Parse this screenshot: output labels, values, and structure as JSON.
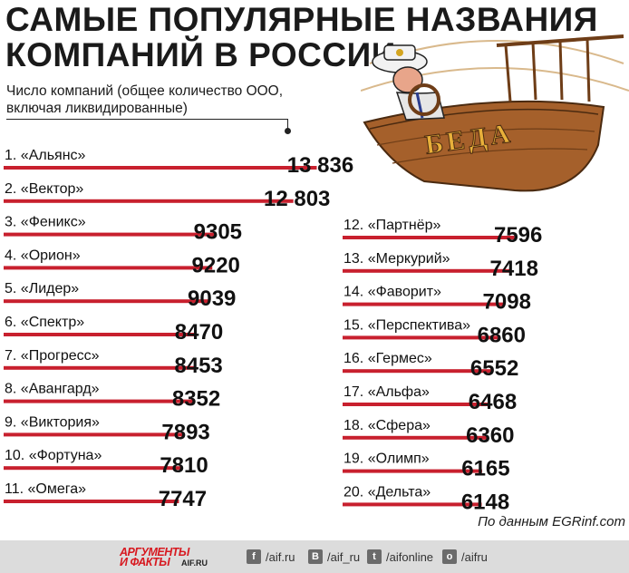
{
  "title_line1": "САМЫЕ ПОПУЛЯРНЫЕ НАЗВАНИЯ",
  "title_line2": "КОМПАНИЙ В РОССИИ",
  "subtitle": "Число компаний (общее количество ООО, включая ликвидированные)",
  "source": "По данным EGRinf.com",
  "illustration_text": "БЕДА",
  "colors": {
    "bar": "#c8202e",
    "footer_bg": "#dcdcdc",
    "logo": "#d71920"
  },
  "chart_data": {
    "type": "bar",
    "orientation": "horizontal",
    "title": "САМЫЕ ПОПУЛЯРНЫЕ НАЗВАНИЯ КОМПАНИЙ В РОССИИ",
    "categories": [
      "1. «Альянс»",
      "2. «Вектор»",
      "3. «Феникс»",
      "4. «Орион»",
      "5. «Лидер»",
      "6. «Спектр»",
      "7. «Прогресс»",
      "8. «Авангард»",
      "9. «Виктория»",
      "10. «Фортуна»",
      "11. «Омега»",
      "12. «Партнёр»",
      "13. «Меркурий»",
      "14. «Фаворит»",
      "15. «Перспектива»",
      "16. «Гермес»",
      "17. «Альфа»",
      "18. «Сфера»",
      "19. «Олимп»",
      "20. «Дельта»"
    ],
    "values": [
      13836,
      12803,
      9305,
      9220,
      9039,
      8470,
      8453,
      8352,
      7893,
      7810,
      7747,
      7596,
      7418,
      7098,
      6860,
      6552,
      6468,
      6360,
      6165,
      6148
    ],
    "value_labels": [
      "13 836",
      "12 803",
      "9305",
      "9220",
      "9039",
      "8470",
      "8453",
      "8352",
      "7893",
      "7810",
      "7747",
      "7596",
      "7418",
      "7098",
      "6860",
      "6552",
      "6468",
      "6360",
      "6165",
      "6148"
    ],
    "columns": 2,
    "legend": "none",
    "grid": false
  },
  "footer": {
    "logo_line1": "АРГУМЕНТЫ",
    "logo_line2": "И ФАКТЫ",
    "logo_domain": "AIF.RU",
    "social": [
      {
        "icon": "facebook-icon",
        "glyph": "f",
        "text": "/aif.ru"
      },
      {
        "icon": "vk-icon",
        "glyph": "B",
        "text": "/aif_ru"
      },
      {
        "icon": "twitter-icon",
        "glyph": "t",
        "text": "/aifonline"
      },
      {
        "icon": "odnoklassniki-icon",
        "glyph": "o",
        "text": "/aifru"
      }
    ]
  }
}
